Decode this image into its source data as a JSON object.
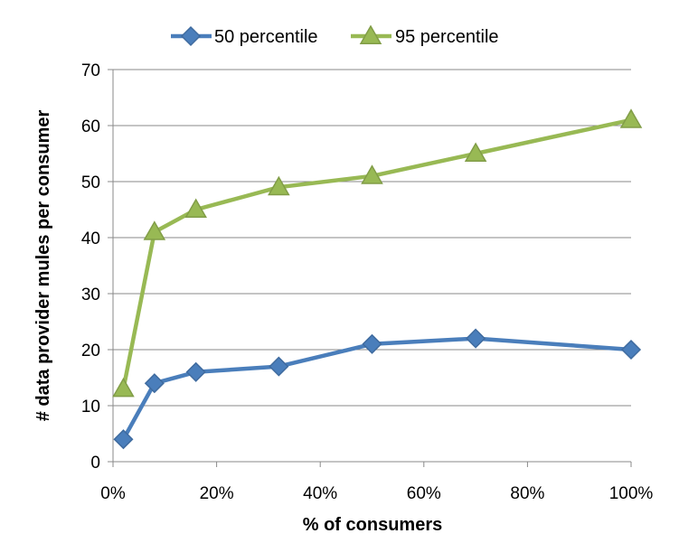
{
  "chart_data": {
    "type": "line",
    "title": "",
    "xlabel": "% of consumers",
    "ylabel": "# data provider mules per consumer",
    "xlim": [
      0,
      1
    ],
    "ylim": [
      0,
      70
    ],
    "x_ticks": [
      0,
      0.2,
      0.4,
      0.6,
      0.8,
      1.0
    ],
    "x_tick_labels": [
      "0%",
      "20%",
      "40%",
      "60%",
      "80%",
      "100%"
    ],
    "y_ticks": [
      0,
      10,
      20,
      30,
      40,
      50,
      60,
      70
    ],
    "y_tick_labels": [
      "0",
      "10",
      "20",
      "30",
      "40",
      "50",
      "60",
      "70"
    ],
    "grid": "horizontal",
    "legend_position": "top",
    "x": [
      0.02,
      0.08,
      0.16,
      0.32,
      0.5,
      0.7,
      1.0
    ],
    "series": [
      {
        "name": "50 percentile",
        "marker": "diamond",
        "color": "#4a7ebb",
        "values": [
          4,
          14,
          16,
          17,
          21,
          22,
          20
        ]
      },
      {
        "name": "95 percentile",
        "marker": "triangle",
        "color": "#98b954",
        "values": [
          13,
          41,
          45,
          49,
          51,
          55,
          61
        ]
      }
    ]
  }
}
